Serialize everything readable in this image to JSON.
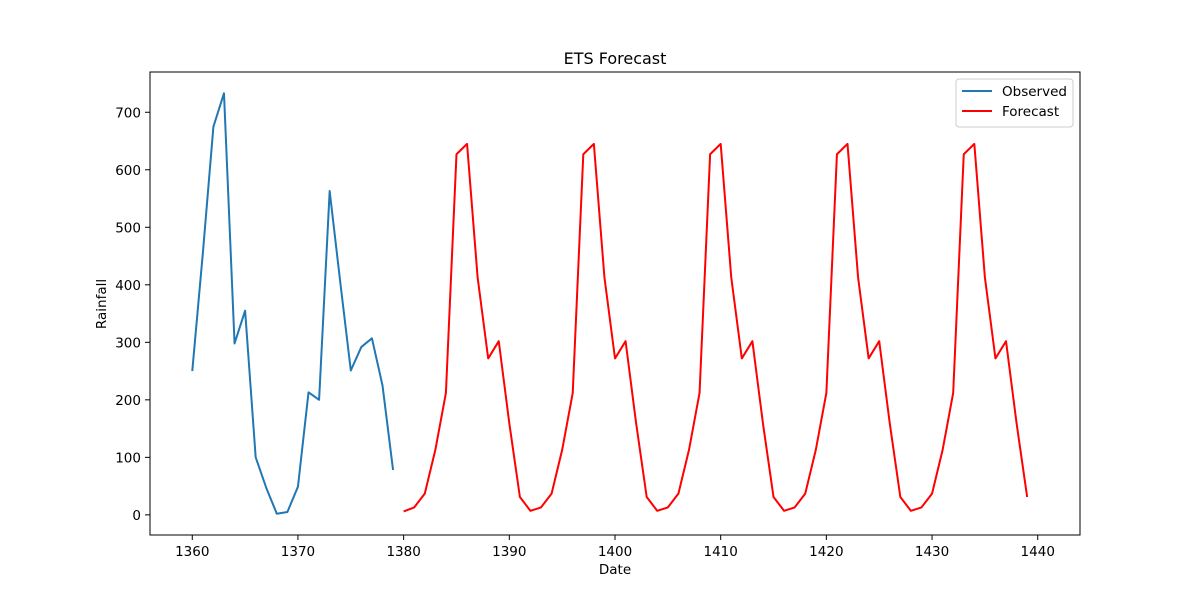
{
  "chart_data": {
    "type": "line",
    "title": "ETS Forecast",
    "xlabel": "Date",
    "ylabel": "Rainfall",
    "xlim": [
      1356,
      1444
    ],
    "ylim": [
      -35,
      770
    ],
    "xticks": [
      1360,
      1370,
      1380,
      1390,
      1400,
      1410,
      1420,
      1430,
      1440
    ],
    "yticks": [
      0,
      100,
      200,
      300,
      400,
      500,
      600,
      700
    ],
    "grid": false,
    "legend_position": "top-right",
    "series": [
      {
        "name": "Observed",
        "color": "#1f77b4",
        "x": [
          1360,
          1361,
          1362,
          1363,
          1364,
          1365,
          1366,
          1367,
          1368,
          1369,
          1370,
          1371,
          1372,
          1373,
          1374,
          1375,
          1376,
          1377,
          1378,
          1379
        ],
        "y": [
          250,
          455,
          675,
          733,
          298,
          355,
          100,
          47,
          2,
          5,
          49,
          213,
          200,
          563,
          405,
          251,
          292,
          307,
          225,
          78
        ]
      },
      {
        "name": "Forecast",
        "color": "#ff0000",
        "x": [
          1380,
          1381,
          1382,
          1383,
          1384,
          1385,
          1386,
          1387,
          1388,
          1389,
          1390,
          1391,
          1392,
          1393,
          1394,
          1395,
          1396,
          1397,
          1398,
          1399,
          1400,
          1401,
          1402,
          1403,
          1404,
          1405,
          1406,
          1407,
          1408,
          1409,
          1410,
          1411,
          1412,
          1413,
          1414,
          1415,
          1416,
          1417,
          1418,
          1419,
          1420,
          1421,
          1422,
          1423,
          1424,
          1425,
          1426,
          1427,
          1428,
          1429,
          1430,
          1431,
          1432,
          1433,
          1434,
          1435,
          1436,
          1437,
          1438,
          1439
        ],
        "y": [
          6,
          13,
          37,
          113,
          212,
          627,
          645,
          413,
          272,
          302,
          159,
          31,
          7,
          13,
          37,
          113,
          212,
          627,
          645,
          413,
          272,
          302,
          159,
          31,
          7,
          13,
          37,
          113,
          212,
          627,
          645,
          413,
          272,
          302,
          159,
          31,
          7,
          13,
          37,
          113,
          212,
          627,
          645,
          413,
          272,
          302,
          159,
          31,
          7,
          13,
          37,
          113,
          212,
          627,
          645,
          413,
          272,
          302,
          159,
          31
        ]
      }
    ]
  }
}
